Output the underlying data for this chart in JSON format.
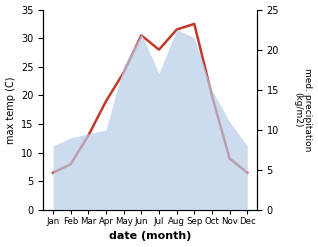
{
  "months": [
    "Jan",
    "Feb",
    "Mar",
    "Apr",
    "May",
    "Jun",
    "Jul",
    "Aug",
    "Sep",
    "Oct",
    "Nov",
    "Dec"
  ],
  "temperature": [
    6.5,
    8.0,
    13.0,
    19.0,
    24.0,
    30.5,
    28.0,
    31.5,
    32.5,
    20.0,
    9.0,
    6.5
  ],
  "precipitation": [
    8.0,
    9.0,
    9.5,
    10.0,
    18.0,
    22.0,
    17.0,
    22.5,
    21.5,
    15.0,
    11.0,
    8.0
  ],
  "temp_color": "#c0392b",
  "precip_color": "#b8cce8",
  "ylabel_left": "max temp (C)",
  "ylabel_right": "med. precipitation\n(kg/m2)",
  "xlabel": "date (month)",
  "ylim_left": [
    0,
    35
  ],
  "ylim_right": [
    0,
    25
  ],
  "yticks_left": [
    0,
    5,
    10,
    15,
    20,
    25,
    30,
    35
  ],
  "yticks_right": [
    0,
    5,
    10,
    15,
    20,
    25
  ],
  "background_color": "#ffffff"
}
